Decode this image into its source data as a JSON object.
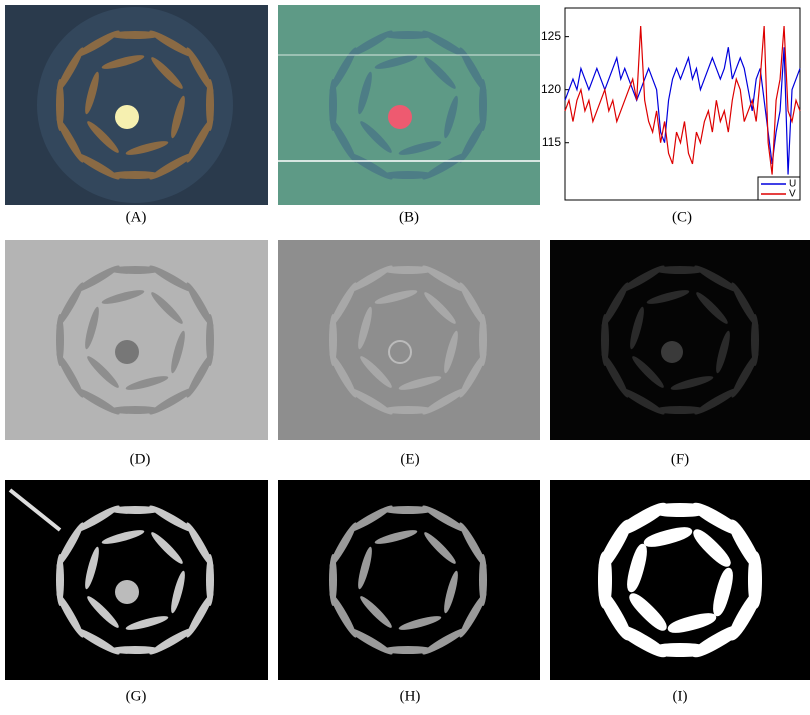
{
  "panels": [
    {
      "label": "(A)"
    },
    {
      "label": "(B)"
    },
    {
      "label": "(C)"
    },
    {
      "label": "(D)"
    },
    {
      "label": "(E)"
    },
    {
      "label": "(F)"
    },
    {
      "label": "(G)"
    },
    {
      "label": "(H)"
    },
    {
      "label": "(I)"
    }
  ],
  "chart_data": {
    "type": "line",
    "x": [
      1,
      2,
      3,
      4,
      5,
      6,
      7,
      8,
      9,
      10,
      11,
      12,
      13,
      14,
      15,
      16,
      17,
      18,
      19,
      20,
      21,
      22,
      23,
      24,
      25,
      26,
      27,
      28,
      29,
      30,
      31,
      32,
      33,
      34,
      35,
      36,
      37,
      38,
      39,
      40,
      41,
      42,
      43,
      44,
      45,
      46,
      47,
      48,
      49,
      50,
      51,
      52,
      53,
      54,
      55,
      56,
      57,
      58,
      59,
      60
    ],
    "xlim": [
      1,
      60
    ],
    "ylim": [
      109.6,
      127.7
    ],
    "yticks": [
      115,
      120,
      125
    ],
    "legend": "lower right",
    "series": [
      {
        "name": "U",
        "color": "#0000dd",
        "values": [
          119,
          120,
          121,
          120,
          122,
          121,
          120,
          121,
          122,
          121,
          120,
          121,
          122,
          123,
          121,
          122,
          121,
          120,
          119,
          120,
          121,
          122,
          121,
          120,
          116,
          115,
          119,
          121,
          122,
          121,
          122,
          123,
          121,
          122,
          120,
          121,
          122,
          123,
          122,
          121,
          122,
          124,
          121,
          122,
          123,
          122,
          120,
          118,
          121,
          122,
          119,
          116,
          113,
          116,
          118,
          124,
          112,
          120,
          121,
          122
        ]
      },
      {
        "name": "V",
        "color": "#dd0000",
        "values": [
          118,
          119,
          117,
          119,
          120,
          118,
          119,
          117,
          118,
          119,
          120,
          118,
          119,
          117,
          118,
          119,
          120,
          121,
          119,
          126,
          119,
          117,
          116,
          118,
          115,
          117,
          114,
          113,
          116,
          115,
          117,
          114,
          113,
          116,
          115,
          117,
          118,
          116,
          119,
          117,
          118,
          116,
          119,
          121,
          120,
          117,
          118,
          119,
          117,
          121,
          126,
          115,
          112,
          119,
          121,
          126,
          118,
          117,
          119,
          118
        ]
      }
    ]
  }
}
